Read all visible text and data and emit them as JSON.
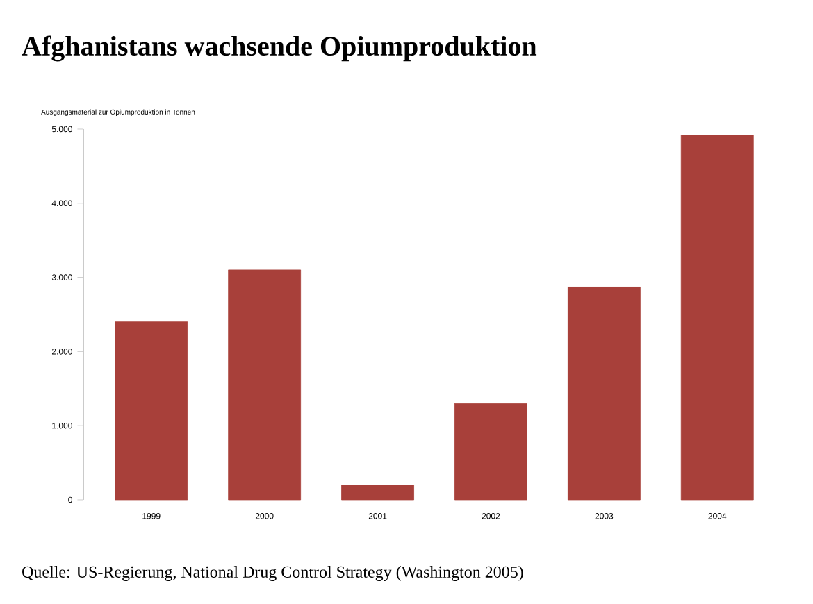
{
  "chart_data": {
    "type": "bar",
    "title": "Afghanistans wachsende Opiumproduktion",
    "ylabel": "Ausgangsmaterial zur Opiumproduktion in Tonnen",
    "categories": [
      "1999",
      "2000",
      "2001",
      "2002",
      "2003",
      "2004"
    ],
    "values": [
      2400,
      3100,
      200,
      1300,
      2870,
      4920
    ],
    "color": "#a8403a",
    "ylim": [
      0,
      5000
    ],
    "yticks": [
      0,
      {
        "value": 1000,
        "label": "1.000"
      },
      {
        "value": 2000,
        "label": "2.000"
      },
      {
        "value": 3000,
        "label": "3.000"
      },
      {
        "value": 4000,
        "label": "4.000"
      },
      {
        "value": 5000,
        "label": "5.000"
      }
    ],
    "annotations": [
      "Quelle: US-Regierung, National Drug Control Strategy (Washington 2005)"
    ]
  }
}
